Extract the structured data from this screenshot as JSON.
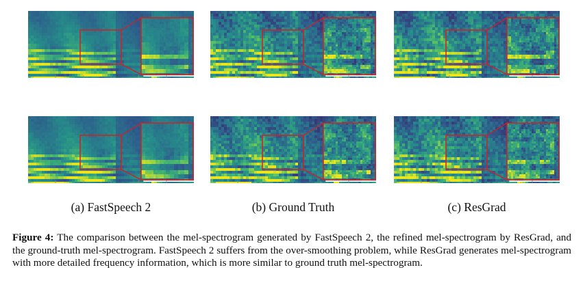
{
  "figure": {
    "panels": [
      {
        "row": 0,
        "col": 0,
        "seed": 11,
        "style": "smooth"
      },
      {
        "row": 0,
        "col": 1,
        "seed": 23,
        "style": "detailed"
      },
      {
        "row": 0,
        "col": 2,
        "seed": 37,
        "style": "detailed"
      },
      {
        "row": 1,
        "col": 0,
        "seed": 41,
        "style": "smooth"
      },
      {
        "row": 1,
        "col": 1,
        "seed": 53,
        "style": "detailed"
      },
      {
        "row": 1,
        "col": 2,
        "seed": 67,
        "style": "detailed"
      }
    ],
    "subcaptions": [
      "(a) FastSpeech 2",
      "(b) Ground Truth",
      "(c) ResGrad"
    ],
    "caption_label": "Figure 4:",
    "caption_text": "The comparison between the mel-spectrogram generated by FastSpeech 2, the refined mel-spectrogram by ResGrad, and the ground-truth mel-spectrogram. FastSpeech 2 suffers from the over-smoothing problem, while ResGrad generates mel-spectrogram with more detailed frequency information, which is more similar to ground truth mel-spectrogram.",
    "colors": {
      "viridis_low": "#3b2a6b",
      "viridis_mid": "#2a9a8a",
      "viridis_high": "#e9e51e",
      "highlight_box": "#d42020"
    }
  }
}
